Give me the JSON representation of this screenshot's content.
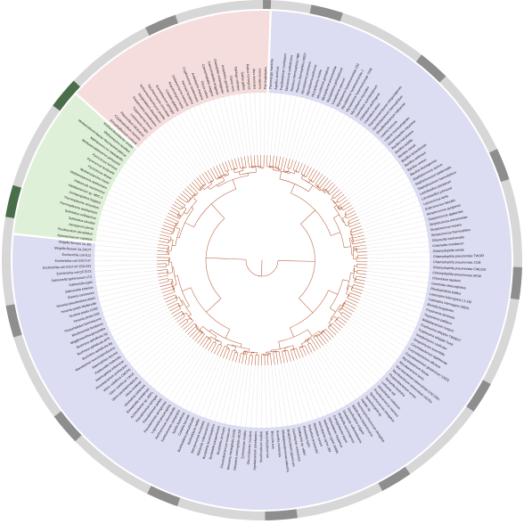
{
  "figure": {
    "colors": {
      "bacteria": "#dcdcf2",
      "eukaryota": "#f6dddd",
      "archaea": "#dff0d8",
      "branch": "#b95f3c",
      "guide": "#b8b8b8",
      "ring_light": "#d7d7d7",
      "ring_dark": "#8e8e8e",
      "ring_green": "#4a6e4a",
      "ring_red": "#d29a9a",
      "separator": "#ffffff"
    },
    "leaves": [
      "Thermotoga maritima",
      "Aquifex aeolicus",
      "Fusobacterium nucleatum",
      "Deinococcus radiodurans",
      "Thermus thermophilus HB8",
      "Thermus thermophilus HB27",
      "Mycoplasma penetrans",
      "Mycoplasma pulmonis",
      "Mycoplasma mobile",
      "Mycoplasma genitalium",
      "Mycoplasma pneumoniae",
      "Mycoplasma gallisepticum",
      "Ureaplasma parvum",
      "Mycoplasma hyopneumoniae 232",
      "Mycoplasma hyopneumoniae J",
      "Mycoplasma hyopneumoniae 7448",
      "Mycoplasma mycoides",
      "Clostridium acetobutylicum",
      "Clostridium perfringens",
      "Clostridium tetani",
      "Thermoanaerobacter tengcongensis",
      "Symbiobacterium thermophilum",
      "Desulfitobacterium hafniense",
      "Listeria innocua",
      "Listeria monocytogenes",
      "Oceanobacillus iheyensis",
      "Bacillus halodurans",
      "Bacillus subtilis",
      "Bacillus clausii",
      "Bacillus licheniformis",
      "Bacillus anthracis",
      "Bacillus cereus",
      "Bacillus thuringiensis",
      "Staphylococcus aureus",
      "Staphylococcus epidermidis",
      "Staphylococcus haemolyticus",
      "Lactobacillus plantarum",
      "Lactobacillus johnsonii",
      "Lactococcus lactis",
      "Enterococcus faecalis",
      "Streptococcus pyogenes",
      "Streptococcus agalactiae",
      "Streptococcus pneumoniae",
      "Streptococcus mutans",
      "Streptococcus thermophilus",
      "Chlamydia trachomatis",
      "Chlamydia muridarum",
      "Chlamydophila caviae",
      "Chlamydophila pneumoniae TW183",
      "Chlamydophila pneumoniae J138",
      "Chlamydophila pneumoniae CWL029",
      "Chlamydophila pneumoniae AR39",
      "Chlorobium tepidum",
      "Gemmata obscuriglobus",
      "Rhodopirellula baltica",
      "Leptospira interrogans L1-130",
      "Leptospira interrogans 56601",
      "Borrelia burgdorferi",
      "Treponema denticola",
      "Treponema pallidum",
      "Bifidobacterium longum",
      "Tropheryma whipplei TW08/27",
      "Tropheryma whipplei Twist",
      "Streptomyces coelicolor",
      "Streptomyces avermitilis",
      "Corynebacterium diphtheriae",
      "Corynebacterium efficiens",
      "Corynebacterium glutamicum 13032",
      "Mycobacterium leprae",
      "Mycobacterium bovis",
      "Mycobacterium tuberculosis CDC1551",
      "Mycobacterium tuberculosis H37Rv",
      "Propionibacterium acnes",
      "Nocardia farcinica",
      "Leifsonia xyli",
      "Gloeobacter violaceus",
      "Prochlorococcus marinus",
      "Synechococcus elongatus",
      "Synechocystis sp.",
      "Nostoc sp.",
      "Thermosynechococcus elongatus",
      "Bdellovibrio bacteriovorus",
      "Desulfovibrio vulgaris",
      "Geobacter sulfurreducens",
      "Wolinella succinogenes",
      "Campylobacter jejuni",
      "Helicobacter hepaticus",
      "Helicobacter pylori 26695",
      "Helicobacter pylori J99",
      "Rickettsia conorii",
      "Rickettsia prowazekii",
      "Rickettsia typhi",
      "Wolbachia sp. wMel",
      "Caulobacter crescentus",
      "Bradyrhizobium japonicum",
      "Rhodopseudomonas palustris",
      "Brucella melitensis",
      "Brucella suis",
      "Mesorhizobium loti",
      "Sinorhizobium meliloti",
      "Agrobacterium tumefaciens",
      "Gluconobacter oxydans",
      "Zymomonas mobilis",
      "Neisseria meningitidis MC58",
      "Neisseria meningitidis Z2491",
      "Chromobacterium violaceum",
      "Bordetella pertussis",
      "Bordetella parapertussis",
      "Bordetella bronchiseptica",
      "Ralstonia solanacearum",
      "Nitrosomonas europaea",
      "Burkholderia mallei",
      "Burkholderia pseudomallei",
      "Coxiella burnetii",
      "Xylella fastidiosa",
      "Xanthomonas campestris",
      "Xanthomonas axonopodis",
      "Legionella pneumophila",
      "Pseudomonas aeruginosa",
      "Pseudomonas putida",
      "Pseudomonas syringae",
      "Acinetobacter sp. ADP1",
      "Shewanella oneidensis",
      "Idiomarina loihiensis",
      "Vibrio cholerae",
      "Vibrio parahaemolyticus",
      "Vibrio vulnificus YJ016",
      "Vibrio vulnificus CMCP6",
      "Photobacterium profundum",
      "Haemophilus influenzae",
      "Pasteurella multocida",
      "Haemophilus ducreyi",
      "Mannheimia succiniciproducens",
      "Buchnera aphidicola Bp",
      "Buchnera aphidicola APS",
      "Buchnera aphidicola Sg",
      "Wigglesworthia glossinidia",
      "Blochmannia floridanus",
      "Photorhabdus luminescens",
      "Yersinia pestis KIM",
      "Yersinia pestis CO92",
      "Yersinia pestis Medievalis",
      "Yersinia pseudotuberculosis",
      "Erwinia carotovora",
      "Salmonella enterica",
      "Salmonella typhi",
      "Salmonella typhimurium LT2",
      "Escherichia coli CFT073",
      "Escherichia coli O157:H7 EDL933",
      "Escherichia coli O157:H7",
      "Escherichia coli K12",
      "Shigella flexneri 2a 2457T",
      "Shigella flexneri 2a 301",
      "Nanoarchaeum equitans",
      "Pyrobaculum aerophilum",
      "Aeropyrum pernix",
      "Sulfolobus tokodaii",
      "Sulfolobus solfataricus",
      "Thermoplasma acidophilum",
      "Thermoplasma volcanium",
      "Archaeoglobus fulgidus",
      "Halobacterium sp. NRC-1",
      "Haloarcula marismortui",
      "Methanosarcina acetivorans",
      "Methanosarcina mazei",
      "Pyrococcus abyssi",
      "Pyrococcus horikoshii",
      "Pyrococcus furiosus",
      "Methanocaldococcus jannaschii",
      "Methanococcus maripaludis",
      "Methanothermobacter thermautotrophicus",
      "Methanopyrus kandleri",
      "Methanobrevibacter smithii",
      "Encephalitozoon cuniculi",
      "Cryptosporidium hominis",
      "Plasmodium falciparum",
      "Leishmania major",
      "Trypanosoma brucei",
      "Thalassiosira pseudonana",
      "Dictyostelium discoideum",
      "Schizosaccharomyces pombe",
      "Saccharomyces cerevisiae",
      "Eremothecium gossypii",
      "Candida glabrata",
      "Kluyveromyces lactis",
      "Debaryomyces hansenii",
      "Yarrowia lipolytica",
      "Cryptococcus neoformans",
      "Arabidopsis thaliana",
      "Oryza sativa",
      "Caenorhabditis elegans",
      "Caenorhabditis briggsae",
      "Drosophila melanogaster",
      "Anopheles gambiae",
      "Danio rerio",
      "Takifugu rubripes",
      "Gallus gallus",
      "Rattus norvegicus",
      "Mus musculus",
      "Homo sapiens",
      "Pan troglodytes"
    ]
  }
}
